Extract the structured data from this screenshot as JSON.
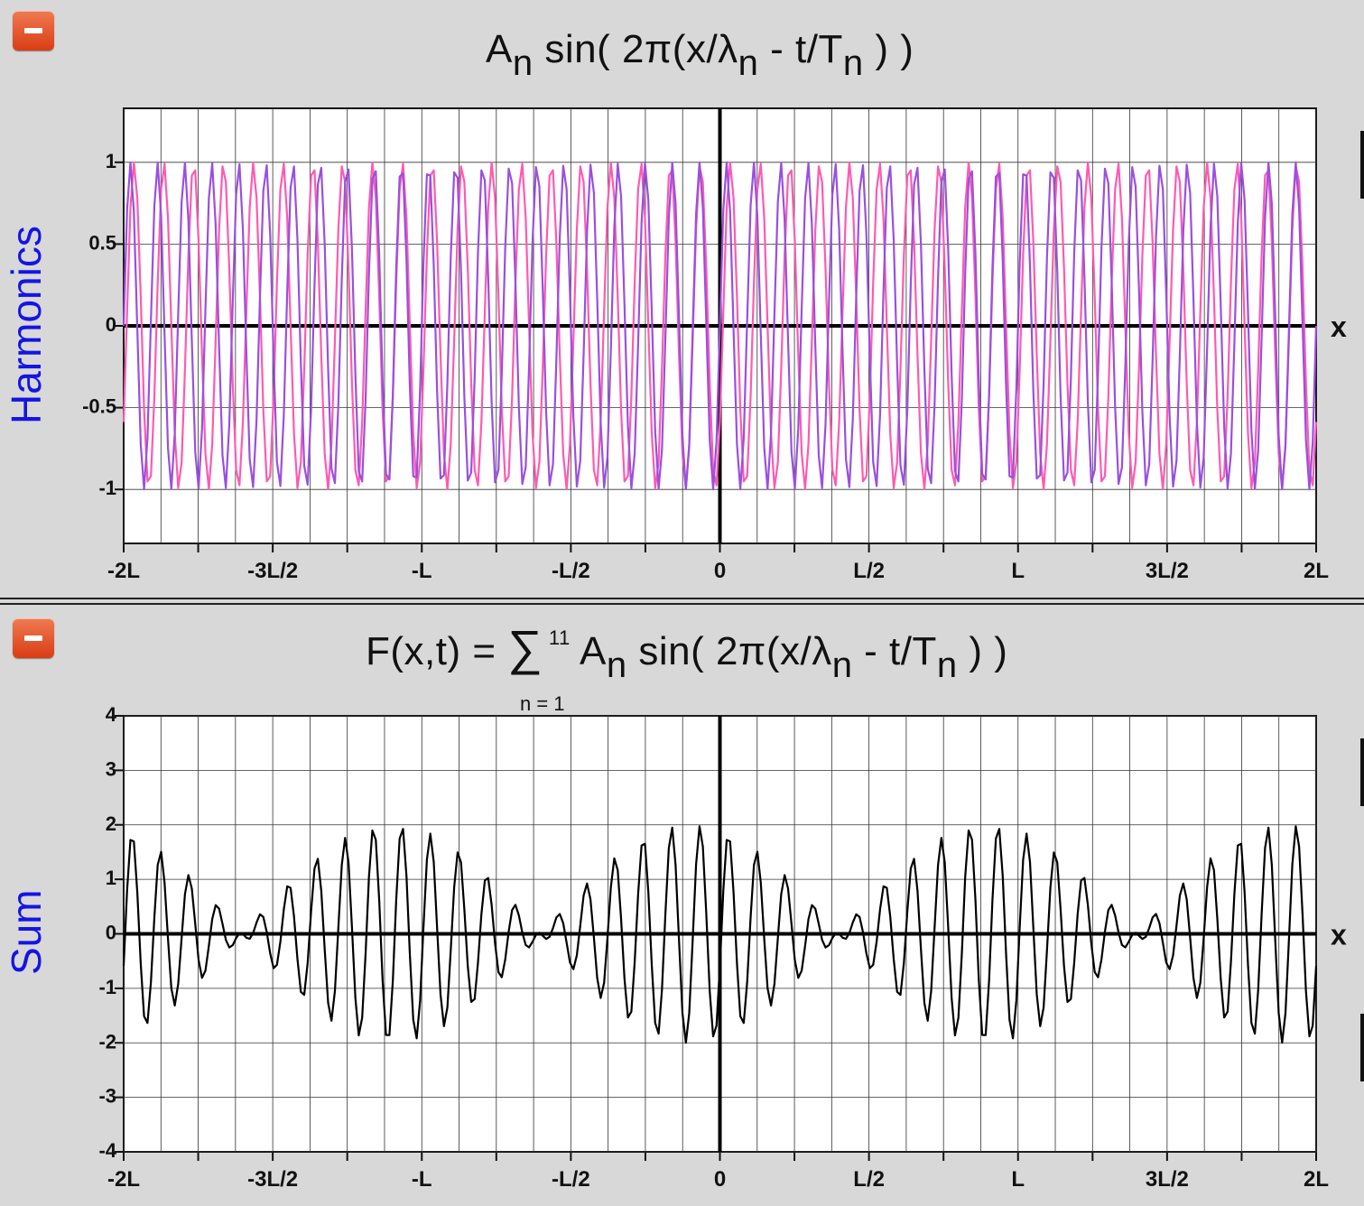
{
  "panels": [
    {
      "collapse_label": "−",
      "equation": {
        "amp": "A",
        "sub1": "n",
        "mid": " sin( 2π(x/λ",
        "sub2": "n",
        "mid2": " - t/T",
        "sub3": "n",
        "end": " ) )"
      },
      "y_axis_label": "Harmonics"
    },
    {
      "collapse_label": "−",
      "equation": {
        "lhs": "F(x,t) = ",
        "sigma": "∑",
        "upper": " 11",
        "amp": " A",
        "sub1": "n",
        "mid": " sin( 2π(x/λ",
        "sub2": "n",
        "mid2": " - t/T",
        "sub3": "n",
        "end": " ) )",
        "lower": "n = 1"
      },
      "y_axis_label": "Sum"
    }
  ],
  "chart_data": [
    {
      "type": "line",
      "title": "Aₙ sin( 2π(x/λₙ - t/Tₙ ) )",
      "ylabel": "Harmonics",
      "xlabel": "x",
      "xlim": [
        -2,
        2
      ],
      "x_unit": "L",
      "x_ticks": [
        -2,
        -1.5,
        -1,
        -0.5,
        0,
        0.5,
        1,
        1.5,
        2
      ],
      "x_tick_labels": [
        "-2L",
        "-3L/2",
        "-L",
        "-L/2",
        "0",
        "L/2",
        "L",
        "3L/2",
        "2L"
      ],
      "ylim": [
        -1.33,
        1.33
      ],
      "y_ticks": [
        -1,
        -0.5,
        0,
        0.5,
        1
      ],
      "y_tick_labels": [
        "-1",
        "-0.5",
        "0",
        "0.5",
        "1"
      ],
      "grid": true,
      "sample_points": 350,
      "series": [
        {
          "amplitude": 1,
          "cycles_per_L": 10,
          "phase": 0.1,
          "color": "#ff5ab0"
        },
        {
          "amplitude": 1,
          "cycles_per_L": 11,
          "phase": 0.0,
          "color": "#9a4fe0"
        }
      ]
    },
    {
      "type": "line",
      "title": "F(x,t) = ∑ n=1..11 Aₙ sin( 2π(x/λₙ - t/Tₙ ) )",
      "ylabel": "Sum",
      "xlabel": "x",
      "xlim": [
        -2,
        2
      ],
      "x_unit": "L",
      "x_ticks": [
        -2,
        -1.5,
        -1,
        -0.5,
        0,
        0.5,
        1,
        1.5,
        2
      ],
      "x_tick_labels": [
        "-2L",
        "-3L/2",
        "-L",
        "-L/2",
        "0",
        "L/2",
        "L",
        "3L/2",
        "2L"
      ],
      "ylim": [
        -4,
        4
      ],
      "y_ticks": [
        -4,
        -3,
        -2,
        -1,
        0,
        1,
        2,
        3,
        4
      ],
      "y_tick_labels": [
        "-4",
        "-3",
        "-2",
        "-1",
        "0",
        "1",
        "2",
        "3",
        "4"
      ],
      "grid": true,
      "sample_points": 350,
      "series": [
        {
          "components": [
            {
              "amplitude": 1,
              "cycles_per_L": 10,
              "phase": 0.1
            },
            {
              "amplitude": 1,
              "cycles_per_L": 11,
              "phase": 0.0
            }
          ],
          "color": "#000000"
        }
      ]
    }
  ]
}
